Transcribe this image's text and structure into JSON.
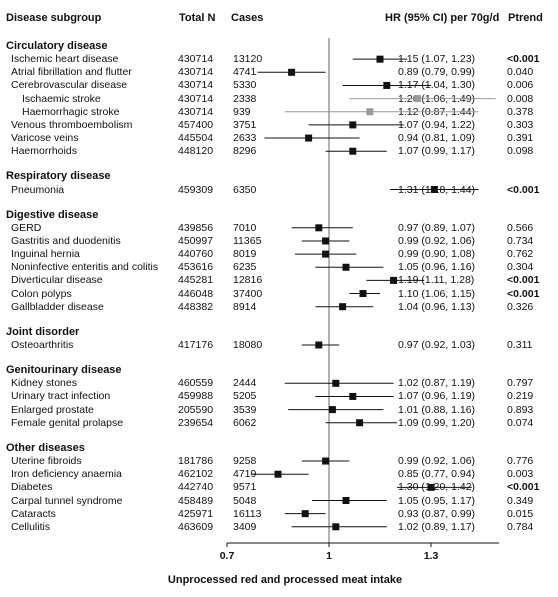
{
  "headers": {
    "subgroup": "Disease subgroup",
    "total_n": "Total N",
    "cases": "Cases",
    "hr": "HR (95% CI) per 70g/d",
    "ptrend": "Ptrend"
  },
  "chart_data": {
    "type": "forest",
    "xlabel": "Unprocessed red and processed meat intake",
    "xticks": [
      0.7,
      1,
      1.3
    ],
    "xlim": [
      0.7,
      1.5
    ],
    "sections": [
      {
        "title": "Circulatory disease",
        "rows": [
          {
            "label": "Ischemic heart disease",
            "n": "430714",
            "cases": "13120",
            "hr": 1.15,
            "lo": 1.07,
            "hi": 1.23,
            "hr_text": "1.15 (1.07, 1.23)",
            "p": "<0.001",
            "p_bold": true,
            "sub": false
          },
          {
            "label": "Atrial fibrillation and flutter",
            "n": "430714",
            "cases": "4741",
            "hr": 0.89,
            "lo": 0.79,
            "hi": 0.99,
            "hr_text": "0.89 (0.79, 0.99)",
            "p": "0.040",
            "p_bold": false,
            "sub": false
          },
          {
            "label": "Cerebrovascular disease",
            "n": "430714",
            "cases": "5330",
            "hr": 1.17,
            "lo": 1.04,
            "hi": 1.3,
            "hr_text": "1.17 (1.04, 1.30)",
            "p": "0.006",
            "p_bold": false,
            "sub": false
          },
          {
            "label": "Ischaemic stroke",
            "n": "430714",
            "cases": "2338",
            "hr": 1.26,
            "lo": 1.06,
            "hi": 1.49,
            "hr_text": "1.26 (1.06, 1.49)",
            "p": "0.008",
            "p_bold": false,
            "sub": true
          },
          {
            "label": "Haemorrhagic stroke",
            "n": "430714",
            "cases": "939",
            "hr": 1.12,
            "lo": 0.87,
            "hi": 1.44,
            "hr_text": "1.12 (0.87, 1.44)",
            "p": "0.378",
            "p_bold": false,
            "sub": true
          },
          {
            "label": "Venous thromboembolism",
            "n": "457400",
            "cases": "3751",
            "hr": 1.07,
            "lo": 0.94,
            "hi": 1.22,
            "hr_text": "1.07 (0.94, 1.22)",
            "p": "0.303",
            "p_bold": false,
            "sub": false
          },
          {
            "label": "Varicose veins",
            "n": "445504",
            "cases": "2633",
            "hr": 0.94,
            "lo": 0.81,
            "hi": 1.09,
            "hr_text": "0.94 (0.81, 1.09)",
            "p": "0.391",
            "p_bold": false,
            "sub": false
          },
          {
            "label": "Haemorrhoids",
            "n": "448120",
            "cases": "8296",
            "hr": 1.07,
            "lo": 0.99,
            "hi": 1.17,
            "hr_text": "1.07 (0.99, 1.17)",
            "p": "0.098",
            "p_bold": false,
            "sub": false
          }
        ]
      },
      {
        "title": "Respiratory disease",
        "rows": [
          {
            "label": "Pneumonia",
            "n": "459309",
            "cases": "6350",
            "hr": 1.31,
            "lo": 1.18,
            "hi": 1.44,
            "hr_text": "1.31 (1.18, 1.44)",
            "p": "<0.001",
            "p_bold": true,
            "sub": false
          }
        ]
      },
      {
        "title": "Digestive disease",
        "rows": [
          {
            "label": "GERD",
            "n": "439856",
            "cases": "7010",
            "hr": 0.97,
            "lo": 0.89,
            "hi": 1.07,
            "hr_text": "0.97 (0.89, 1.07)",
            "p": "0.566",
            "p_bold": false,
            "sub": false
          },
          {
            "label": "Gastritis and duodenitis",
            "n": "450997",
            "cases": "11365",
            "hr": 0.99,
            "lo": 0.92,
            "hi": 1.06,
            "hr_text": "0.99 (0.92, 1.06)",
            "p": "0.734",
            "p_bold": false,
            "sub": false
          },
          {
            "label": "Inguinal hernia",
            "n": "440760",
            "cases": "8019",
            "hr": 0.99,
            "lo": 0.9,
            "hi": 1.08,
            "hr_text": "0.99 (0.90, 1.08)",
            "p": "0.762",
            "p_bold": false,
            "sub": false
          },
          {
            "label": "Noninfective enteritis and colitis",
            "n": "453616",
            "cases": "6235",
            "hr": 1.05,
            "lo": 0.96,
            "hi": 1.16,
            "hr_text": "1.05 (0.96, 1.16)",
            "p": "0.304",
            "p_bold": false,
            "sub": false
          },
          {
            "label": "Diverticular disease",
            "n": "445281",
            "cases": "12816",
            "hr": 1.19,
            "lo": 1.11,
            "hi": 1.28,
            "hr_text": "1.19 (1.11, 1.28)",
            "p": "<0.001",
            "p_bold": true,
            "sub": false
          },
          {
            "label": "Colon polyps",
            "n": "446048",
            "cases": "37400",
            "hr": 1.1,
            "lo": 1.06,
            "hi": 1.15,
            "hr_text": "1.10 (1.06, 1.15)",
            "p": "<0.001",
            "p_bold": true,
            "sub": false
          },
          {
            "label": "Gallbladder disease",
            "n": "448382",
            "cases": "8914",
            "hr": 1.04,
            "lo": 0.96,
            "hi": 1.13,
            "hr_text": "1.04 (0.96, 1.13)",
            "p": "0.326",
            "p_bold": false,
            "sub": false
          }
        ]
      },
      {
        "title": "Joint disorder",
        "rows": [
          {
            "label": "Osteoarthritis",
            "n": "417176",
            "cases": "18080",
            "hr": 0.97,
            "lo": 0.92,
            "hi": 1.03,
            "hr_text": "0.97 (0.92, 1.03)",
            "p": "0.311",
            "p_bold": false,
            "sub": false
          }
        ]
      },
      {
        "title": "Genitourinary disease",
        "rows": [
          {
            "label": "Kidney stones",
            "n": "460559",
            "cases": "2444",
            "hr": 1.02,
            "lo": 0.87,
            "hi": 1.19,
            "hr_text": "1.02 (0.87, 1.19)",
            "p": "0.797",
            "p_bold": false,
            "sub": false
          },
          {
            "label": "Urinary tract infection",
            "n": "459988",
            "cases": "5205",
            "hr": 1.07,
            "lo": 0.96,
            "hi": 1.19,
            "hr_text": "1.07 (0.96, 1.19)",
            "p": "0.219",
            "p_bold": false,
            "sub": false
          },
          {
            "label": "Enlarged prostate",
            "n": "205590",
            "cases": "3539",
            "hr": 1.01,
            "lo": 0.88,
            "hi": 1.16,
            "hr_text": "1.01 (0.88, 1.16)",
            "p": "0.893",
            "p_bold": false,
            "sub": false
          },
          {
            "label": "Female genital prolapse",
            "n": "239654",
            "cases": "6062",
            "hr": 1.09,
            "lo": 0.99,
            "hi": 1.2,
            "hr_text": "1.09 (0.99, 1.20)",
            "p": "0.074",
            "p_bold": false,
            "sub": false
          }
        ]
      },
      {
        "title": "Other diseases",
        "rows": [
          {
            "label": "Uterine fibroids",
            "n": "181786",
            "cases": "9258",
            "hr": 0.99,
            "lo": 0.92,
            "hi": 1.06,
            "hr_text": "0.99 (0.92, 1.06)",
            "p": "0.776",
            "p_bold": false,
            "sub": false
          },
          {
            "label": "Iron deficiency anaemia",
            "n": "462102",
            "cases": "4719",
            "hr": 0.85,
            "lo": 0.77,
            "hi": 0.94,
            "hr_text": "0.85 (0.77, 0.94)",
            "p": "0.003",
            "p_bold": false,
            "sub": false
          },
          {
            "label": "Diabetes",
            "n": "442740",
            "cases": "9571",
            "hr": 1.3,
            "lo": 1.2,
            "hi": 1.42,
            "hr_text": "1.30 (1.20, 1.42)",
            "p": "<0.001",
            "p_bold": true,
            "sub": false
          },
          {
            "label": "Carpal tunnel syndrome",
            "n": "458489",
            "cases": "5048",
            "hr": 1.05,
            "lo": 0.95,
            "hi": 1.17,
            "hr_text": "1.05 (0.95, 1.17)",
            "p": "0.349",
            "p_bold": false,
            "sub": false
          },
          {
            "label": "Cataracts",
            "n": "425971",
            "cases": "16113",
            "hr": 0.93,
            "lo": 0.87,
            "hi": 0.99,
            "hr_text": "0.93 (0.87, 0.99)",
            "p": "0.015",
            "p_bold": false,
            "sub": false
          },
          {
            "label": "Cellulitis",
            "n": "463609",
            "cases": "3409",
            "hr": 1.02,
            "lo": 0.89,
            "hi": 1.17,
            "hr_text": "1.02 (0.89, 1.17)",
            "p": "0.784",
            "p_bold": false,
            "sub": false
          }
        ]
      }
    ],
    "colors": {
      "marker": "#111111",
      "marker_sub": "#999999",
      "ci": "#111111",
      "ci_sub": "#999999",
      "refline": "#666666"
    }
  }
}
